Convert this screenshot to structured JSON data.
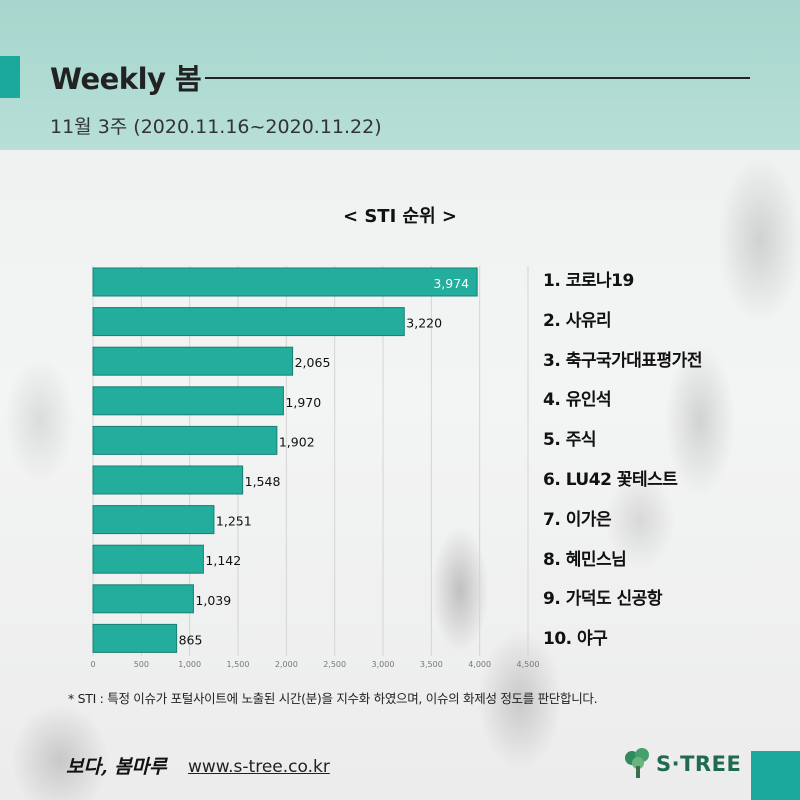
{
  "header": {
    "title": "Weekly 봄",
    "subtitle": "11월 3주 (2020.11.16~2020.11.22)"
  },
  "colors": {
    "accent": "#1aa99a",
    "bar": "#22ad9c",
    "header_bg": "#a6d6cd",
    "logo": "#1f6b50"
  },
  "chart_data": {
    "type": "bar",
    "orientation": "horizontal",
    "title": "< STI 순위 >",
    "categories": [
      "1. 코로나19",
      "2. 사유리",
      "3. 축구국가대표평가전",
      "4. 유인석",
      "5. 주식",
      "6. LU42 꽃테스트",
      "7. 이가은",
      "8. 혜민스님",
      "9. 가덕도 신공항",
      "10. 야구"
    ],
    "values": [
      3974,
      3220,
      2065,
      1970,
      1902,
      1548,
      1251,
      1142,
      1039,
      865
    ],
    "value_labels": [
      "3,974",
      "3,220",
      "2,065",
      "1,970",
      "1,902",
      "1,548",
      "1,251",
      "1,142",
      "1,039",
      "865"
    ],
    "xlim": [
      0,
      4500
    ],
    "xticks": [
      "0",
      "500",
      "1,000",
      "1,500",
      "2,000",
      "2,500",
      "3,000",
      "3,500",
      "4,000",
      "4,500"
    ],
    "xlabel": "",
    "ylabel": "",
    "grid": true,
    "legend": "none"
  },
  "footnote": "* STI : 특정 이슈가 포털사이트에 노출된 시간(분)을 지수화 하였으며, 이슈의 화제성 정도를 판단합니다.",
  "footer": {
    "tagline": "보다, 봄마루",
    "url": "www.s-tree.co.kr",
    "logo_text": "S·TREE",
    "logo_icon": "tree-icon"
  }
}
